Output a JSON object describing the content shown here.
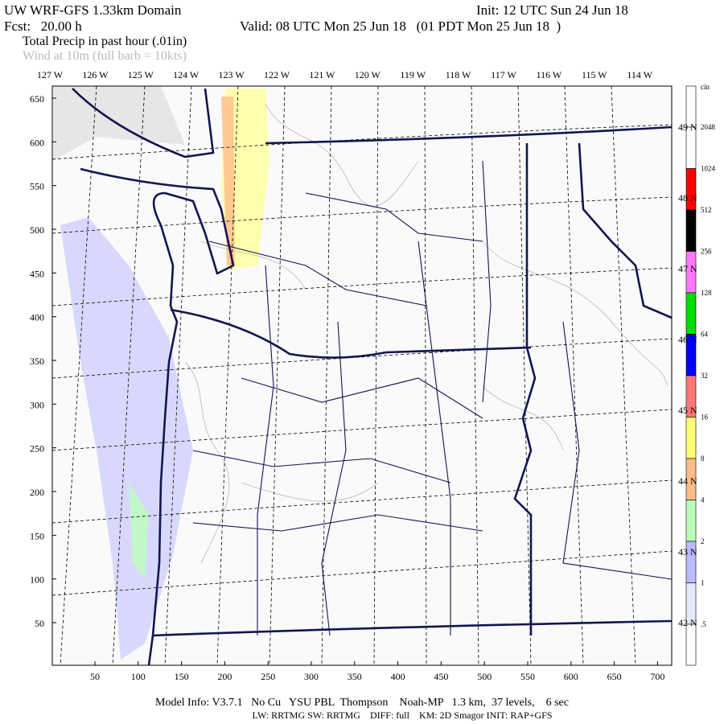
{
  "header": {
    "title": "UW WRF-GFS 1.33km Domain",
    "init": "Init: 12 UTC Sun 24 Jun 18",
    "fcst": "Fcst:   20.00 h",
    "valid": "Valid: 08 UTC Mon 25 Jun 18   (01 PDT Mon 25 Jun 18  )",
    "field1": "Total Precip in past hour (.01in)",
    "field2": "Wind at 10m (full barb = 10kts)"
  },
  "lon_labels": [
    "127 W",
    "126 W",
    "125 W",
    "124 W",
    "123 W",
    "122 W",
    "121 W",
    "120 W",
    "119 W",
    "118 W",
    "117 W",
    "116 W",
    "115 W",
    "114 W"
  ],
  "lat_labels": [
    "49 N",
    "48 N",
    "47 N",
    "46 N",
    "45 N",
    "44 N",
    "43 N",
    "42 N"
  ],
  "y_ticks": [
    650,
    600,
    550,
    500,
    450,
    400,
    350,
    300,
    250,
    200,
    150,
    100,
    50
  ],
  "x_ticks": [
    50,
    100,
    150,
    200,
    250,
    300,
    350,
    400,
    450,
    500,
    550,
    600,
    650,
    700
  ],
  "colorbar": {
    "unit": "cin",
    "labels": [
      "2048",
      "1024",
      "512",
      "256",
      "128",
      "64",
      "32",
      "16",
      "8",
      "4",
      "2",
      "1",
      ".5"
    ],
    "colors": [
      "#ffffff",
      "#ffffff",
      "#ff0000",
      "#000000",
      "#ff77ff",
      "#00dd00",
      "#0000ff",
      "#ff7777",
      "#ffff77",
      "#ffbb88",
      "#bbffbb",
      "#bbbbff",
      "#e8e8ff",
      "#ffffff"
    ]
  },
  "footer": [
    "Model Info: V3.7.1   No Cu   YSU PBL  Thompson    Noah-MP   1.3 km,  37 levels,    6 sec",
    "LW: RRTMG SW: RRTMG    DIFF: full    KM: 2D Smagor INIT: RAP+GFS"
  ]
}
